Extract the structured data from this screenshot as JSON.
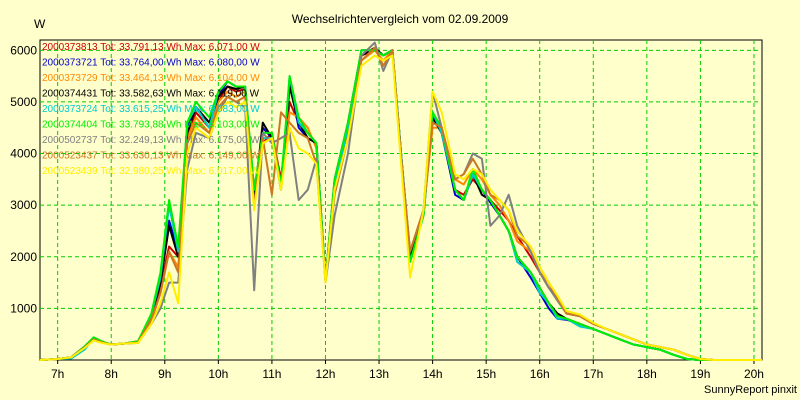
{
  "chart_data": {
    "type": "line",
    "title": "Wechselrichtervergleich vom 02.09.2009",
    "ylabel": "W",
    "xlabel": "",
    "footer": "SunnyReport pinxit",
    "ylim": [
      0,
      6200
    ],
    "xlim": [
      6.67,
      20.15
    ],
    "yticks": [
      1000,
      2000,
      3000,
      4000,
      5000,
      6000
    ],
    "xticks": [
      {
        "v": 7,
        "label": "7h"
      },
      {
        "v": 8,
        "label": "8h"
      },
      {
        "v": 9,
        "label": "9h"
      },
      {
        "v": 10,
        "label": "10h"
      },
      {
        "v": 11,
        "label": "11h"
      },
      {
        "v": 12,
        "label": "12h"
      },
      {
        "v": 13,
        "label": "13h"
      },
      {
        "v": 14,
        "label": "14h"
      },
      {
        "v": 15,
        "label": "15h"
      },
      {
        "v": 16,
        "label": "16h"
      },
      {
        "v": 17,
        "label": "17h"
      },
      {
        "v": 18,
        "label": "18h"
      },
      {
        "v": 19,
        "label": "19h"
      },
      {
        "v": 20,
        "label": "20h"
      }
    ],
    "grid": true,
    "colors": {
      "background": "#ffffcc",
      "plot_background": "#ffffcc",
      "grid": "#00cc00",
      "axis": "#000000"
    },
    "x": [
      6.67,
      7,
      7.25,
      7.5,
      7.67,
      7.83,
      8,
      8.25,
      8.5,
      8.75,
      8.92,
      9.08,
      9.25,
      9.42,
      9.58,
      9.83,
      10,
      10.17,
      10.33,
      10.5,
      10.67,
      10.83,
      11,
      11.17,
      11.33,
      11.5,
      11.67,
      11.83,
      12,
      12.17,
      12.42,
      12.67,
      12.92,
      13.08,
      13.25,
      13.42,
      13.58,
      13.83,
      14,
      14.17,
      14.42,
      14.58,
      14.75,
      14.92,
      15.08,
      15.25,
      15.42,
      15.58,
      15.83,
      16,
      16.17,
      16.33,
      16.5,
      16.75,
      17,
      17.25,
      17.5,
      17.75,
      18,
      18.25,
      18.5,
      18.75,
      19,
      19.25,
      19.5,
      19.75,
      20,
      20.15
    ],
    "series": [
      {
        "name": "2000373813 Tot: 33.791,13 Wh Max: 6.071,00 W",
        "color": "#cc0000",
        "values": [
          0,
          20,
          50,
          250,
          420,
          350,
          300,
          320,
          350,
          800,
          1400,
          2200,
          2000,
          4300,
          4800,
          4500,
          5000,
          5300,
          5200,
          5250,
          3300,
          4200,
          4400,
          3500,
          5000,
          4600,
          4400,
          4200,
          1550,
          3400,
          4500,
          5900,
          6000,
          5900,
          6000,
          3800,
          2100,
          2900,
          4600,
          4500,
          3300,
          3200,
          3500,
          3300,
          3100,
          2900,
          2700,
          2400,
          2000,
          1700,
          1400,
          1200,
          900,
          850,
          700,
          600,
          500,
          400,
          300,
          250,
          200,
          100,
          20,
          0,
          0,
          0,
          0,
          0
        ]
      },
      {
        "name": "2000373721 Tot: 33.764,00 Wh Max: 6.080,00 W",
        "color": "#0000cc",
        "values": [
          0,
          20,
          50,
          250,
          430,
          350,
          300,
          320,
          350,
          850,
          1500,
          2700,
          2100,
          4500,
          4900,
          4600,
          5100,
          5400,
          5300,
          5300,
          3200,
          4500,
          4300,
          3300,
          5400,
          4500,
          4300,
          4200,
          1550,
          3500,
          4600,
          6000,
          6000,
          5900,
          6000,
          3900,
          2000,
          2800,
          4700,
          4400,
          3200,
          3100,
          3600,
          3300,
          3050,
          2800,
          2500,
          2000,
          1600,
          1300,
          1000,
          800,
          780,
          700,
          600,
          500,
          400,
          300,
          250,
          200,
          100,
          20,
          0,
          0,
          0,
          0,
          0,
          0
        ]
      },
      {
        "name": "2000373729 Tot: 33.464,13 Wh Max: 6.104,00 W",
        "color": "#ff8800",
        "values": [
          0,
          20,
          50,
          240,
          400,
          340,
          300,
          320,
          340,
          750,
          1300,
          2100,
          1800,
          4300,
          4700,
          4400,
          5000,
          5200,
          5100,
          5200,
          3000,
          4200,
          4300,
          3300,
          4800,
          4700,
          4500,
          4100,
          1550,
          3300,
          4400,
          5800,
          6000,
          5800,
          6000,
          3800,
          2000,
          2900,
          4500,
          4500,
          3500,
          3400,
          3700,
          3500,
          3200,
          3000,
          2700,
          2300,
          2100,
          1700,
          1500,
          1200,
          900,
          850,
          700,
          600,
          500,
          400,
          300,
          250,
          200,
          100,
          20,
          0,
          0,
          0,
          0,
          0
        ]
      },
      {
        "name": "2000374431 Tot: 33.582,63 Wh Max: 6.119,00 W",
        "color": "#000000",
        "values": [
          0,
          20,
          50,
          260,
          430,
          350,
          300,
          320,
          360,
          850,
          1500,
          2600,
          2000,
          4400,
          4900,
          4600,
          5100,
          5300,
          5250,
          5300,
          3100,
          4600,
          4300,
          3400,
          5300,
          4600,
          4300,
          4200,
          1550,
          3400,
          4500,
          5900,
          6050,
          5900,
          6000,
          3900,
          2000,
          2900,
          4700,
          4400,
          3300,
          3100,
          3600,
          3200,
          3100,
          2800,
          2500,
          2000,
          1700,
          1400,
          1100,
          900,
          800,
          700,
          600,
          500,
          400,
          300,
          250,
          200,
          100,
          20,
          0,
          0,
          0,
          0,
          0,
          0
        ]
      },
      {
        "name": "2000373724 Tot: 33.615,25 Wh Max: 6.083,00 W",
        "color": "#00cccc",
        "values": [
          0,
          20,
          30,
          200,
          420,
          350,
          300,
          320,
          350,
          880,
          1600,
          3000,
          2100,
          4600,
          4900,
          4500,
          5200,
          5400,
          5300,
          5300,
          3300,
          4300,
          4300,
          3300,
          5500,
          4600,
          4400,
          4200,
          1550,
          3400,
          4500,
          6000,
          6000,
          5900,
          6000,
          3900,
          1900,
          2800,
          4800,
          4400,
          3300,
          3100,
          3600,
          3300,
          3100,
          2800,
          2500,
          1900,
          1700,
          1300,
          1100,
          800,
          800,
          650,
          600,
          500,
          400,
          300,
          250,
          200,
          100,
          20,
          0,
          0,
          0,
          0,
          0,
          0
        ]
      },
      {
        "name": "2000374404 Tot: 33.793,88 Wh Max: 6.103,00 W",
        "color": "#00ee00",
        "values": [
          0,
          20,
          50,
          260,
          440,
          360,
          300,
          320,
          360,
          900,
          1700,
          3100,
          2200,
          4600,
          5000,
          4700,
          5200,
          5400,
          5300,
          5300,
          3300,
          4400,
          4400,
          3400,
          5500,
          4700,
          4400,
          4200,
          1550,
          3500,
          4600,
          6000,
          6000,
          5900,
          6000,
          3900,
          1900,
          2800,
          4800,
          4500,
          3300,
          3100,
          3700,
          3300,
          3100,
          2800,
          2500,
          2000,
          1700,
          1400,
          1100,
          850,
          800,
          700,
          600,
          500,
          400,
          300,
          250,
          200,
          100,
          20,
          0,
          0,
          0,
          0,
          0,
          0
        ]
      },
      {
        "name": "2000502737 Tot: 32.249,13 Wh Max: 6.175,00 W",
        "color": "#808080",
        "values": [
          0,
          20,
          50,
          240,
          400,
          340,
          300,
          320,
          330,
          700,
          1000,
          1500,
          1500,
          3700,
          4400,
          4300,
          4800,
          5100,
          5000,
          4900,
          1350,
          4400,
          4200,
          4300,
          4400,
          3100,
          3300,
          3900,
          1500,
          2800,
          4000,
          5900,
          6150,
          5600,
          6000,
          3900,
          2100,
          2900,
          5200,
          4500,
          3500,
          3600,
          4000,
          3900,
          2600,
          2800,
          3200,
          2600,
          2100,
          1700,
          1400,
          1150,
          900,
          850,
          700,
          600,
          500,
          400,
          300,
          250,
          200,
          100,
          20,
          0,
          0,
          0,
          0,
          0
        ]
      },
      {
        "name": "2000523437 Tot: 33.630,13 Wh Max: 6.149,00 W",
        "color": "#cc7722",
        "values": [
          0,
          20,
          50,
          240,
          400,
          340,
          300,
          320,
          340,
          800,
          1300,
          2100,
          1700,
          4200,
          4600,
          4400,
          4900,
          5100,
          5000,
          5100,
          3000,
          4300,
          3200,
          4800,
          4600,
          4400,
          4300,
          3800,
          1550,
          3200,
          4300,
          5800,
          6050,
          5700,
          6000,
          3800,
          2100,
          2900,
          4600,
          4500,
          3500,
          3600,
          3900,
          3600,
          3200,
          3100,
          2900,
          2400,
          2200,
          1800,
          1500,
          1200,
          900,
          850,
          700,
          600,
          500,
          400,
          300,
          250,
          200,
          100,
          20,
          0,
          0,
          0,
          0,
          0
        ]
      },
      {
        "name": "2000523439 Tot: 32.980,25 Wh Max: 6.017,00 W",
        "color": "#ffee00",
        "values": [
          0,
          20,
          50,
          230,
          380,
          330,
          300,
          320,
          330,
          700,
          1100,
          1700,
          1100,
          4000,
          4500,
          4300,
          4800,
          5000,
          4900,
          5000,
          2900,
          4200,
          4300,
          3300,
          4500,
          4100,
          4000,
          3800,
          1500,
          3300,
          4300,
          5700,
          5900,
          5800,
          5900,
          3700,
          1600,
          2900,
          5200,
          4800,
          3600,
          3500,
          3700,
          3600,
          3300,
          3100,
          2900,
          2500,
          2200,
          1800,
          1500,
          1250,
          950,
          880,
          720,
          600,
          500,
          400,
          300,
          250,
          200,
          100,
          20,
          0,
          0,
          0,
          0,
          0
        ]
      }
    ]
  }
}
